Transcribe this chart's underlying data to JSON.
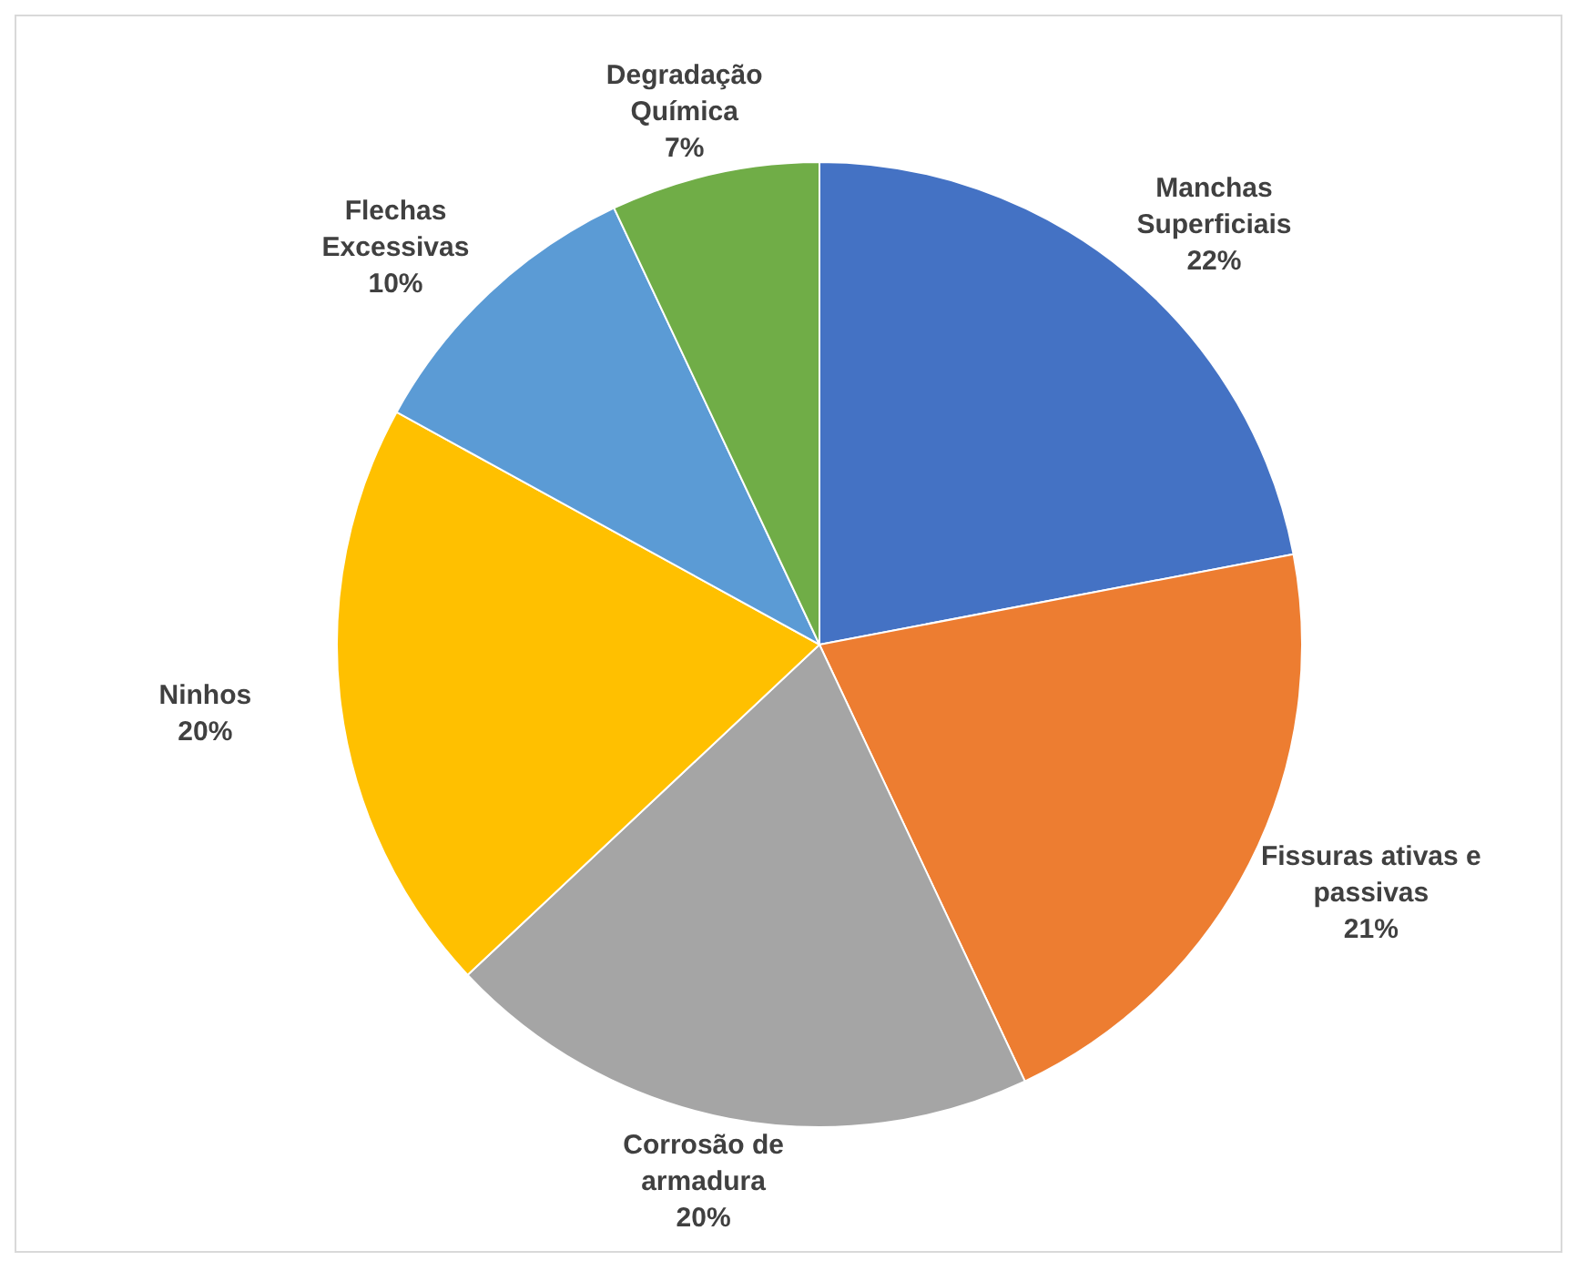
{
  "chart_data": {
    "type": "pie",
    "categories": [
      "Manchas Superficiais",
      "Fissuras ativas e passivas",
      "Corrosão de armadura",
      "Ninhos",
      "Flechas Excessivas",
      "Degradação Química"
    ],
    "values": [
      22,
      21,
      20,
      20,
      10,
      7
    ],
    "colors": [
      "#4472c4",
      "#ed7d31",
      "#a5a5a5",
      "#ffc000",
      "#5b9bd5",
      "#70ad47"
    ],
    "value_labels": [
      "22%",
      "21%",
      "20%",
      "20%",
      "10%",
      "7%"
    ],
    "legend": false
  }
}
